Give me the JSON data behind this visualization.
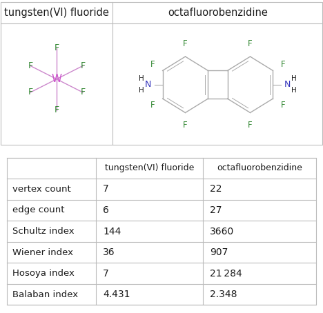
{
  "mol1_title": "tungsten(VI) fluoride",
  "mol2_title": "octafluorobenzidine",
  "rows": [
    [
      "vertex count",
      "7",
      "22"
    ],
    [
      "edge count",
      "6",
      "27"
    ],
    [
      "Schultz index",
      "144",
      "3660"
    ],
    [
      "Wiener index",
      "36",
      "907"
    ],
    [
      "Hosoya index",
      "7",
      "21 284"
    ],
    [
      "Balaban index",
      "4.431",
      "2.348"
    ]
  ],
  "col0_header": "",
  "col1_header": "tungsten(VI) fluoride",
  "col2_header": "octafluorobenzidine",
  "bg_color": "#ffffff",
  "text_color": "#1a1a1a",
  "border_color": "#bbbbbb",
  "W_color": "#cc55cc",
  "F_color": "#338833",
  "N_color": "#3333bb",
  "bond_color": "#aaaaaa",
  "W_bond_color": "#cc88cc"
}
